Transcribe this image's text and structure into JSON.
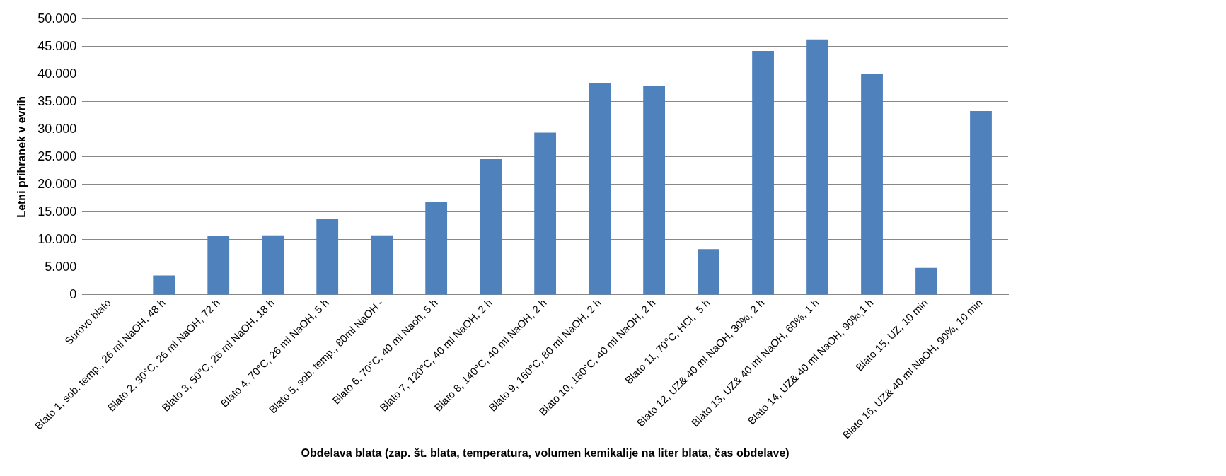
{
  "chart_data": {
    "type": "bar",
    "xlabel": "Obdelava blata (zap. št. blata, temperatura, volumen kemikalije na liter blata, čas obdelave)",
    "ylabel": "Letni prihranek v evrih",
    "categories": [
      "Surovo blato",
      "Blato 1, sob. temp., 26 ml NaOH, 48 h",
      "Blato 2, 30°C, 26 ml NaOH, 72 h",
      "Blato 3, 50°C, 26 ml NaOH, 18 h",
      "Blato 4, 70°C, 26 ml NaOH, 5 h",
      "Blato 5, sob. temp., 80ml NaOH -",
      "Blato 6, 70°C, 40 ml Naoh, 5 h",
      "Blato 7, 120°C, 40 ml NaOH, 2 h",
      "Blato 8, 140°C, 40 ml NaOH, 2 h",
      "Blato 9, 160°C, 80 ml NaOH, 2 h",
      "Blato 10, 180°C, 40 ml NaOH, 2 h",
      "Blato 11, 70°C, HCl,  5 h",
      "Blato 12, UZ& 40 ml NaOH, 30%, 2 h",
      "Blato 13, UZ& 40 ml NaOH, 60%, 1 h",
      "Blato 14, UZ& 40 ml NaOH, 90%,1 h",
      "Blato 15, UZ, 10 min",
      "Blato 16, UZ& 40 ml NaOH, 90%, 10 min"
    ],
    "values": [
      0,
      3500,
      10700,
      10800,
      13700,
      10800,
      16800,
      24600,
      29400,
      38300,
      37800,
      8300,
      44200,
      46300,
      40000,
      4900,
      33300
    ],
    "color": "#4f81bd",
    "ylim": [
      0,
      50000
    ],
    "yticks": [
      0,
      {
        "value": 5000,
        "label": "5.000"
      },
      {
        "value": 10000,
        "label": "10.000"
      },
      {
        "value": 15000,
        "label": "15.000"
      },
      {
        "value": 20000,
        "label": "20.000"
      },
      {
        "value": 25000,
        "label": "25.000"
      },
      {
        "value": 30000,
        "label": "30.000"
      },
      {
        "value": 35000,
        "label": "35.000"
      },
      {
        "value": 40000,
        "label": "40.000"
      },
      {
        "value": 45000,
        "label": "45.000"
      },
      {
        "value": 50000,
        "label": "50.000"
      }
    ],
    "grid": "y",
    "legend": false
  }
}
